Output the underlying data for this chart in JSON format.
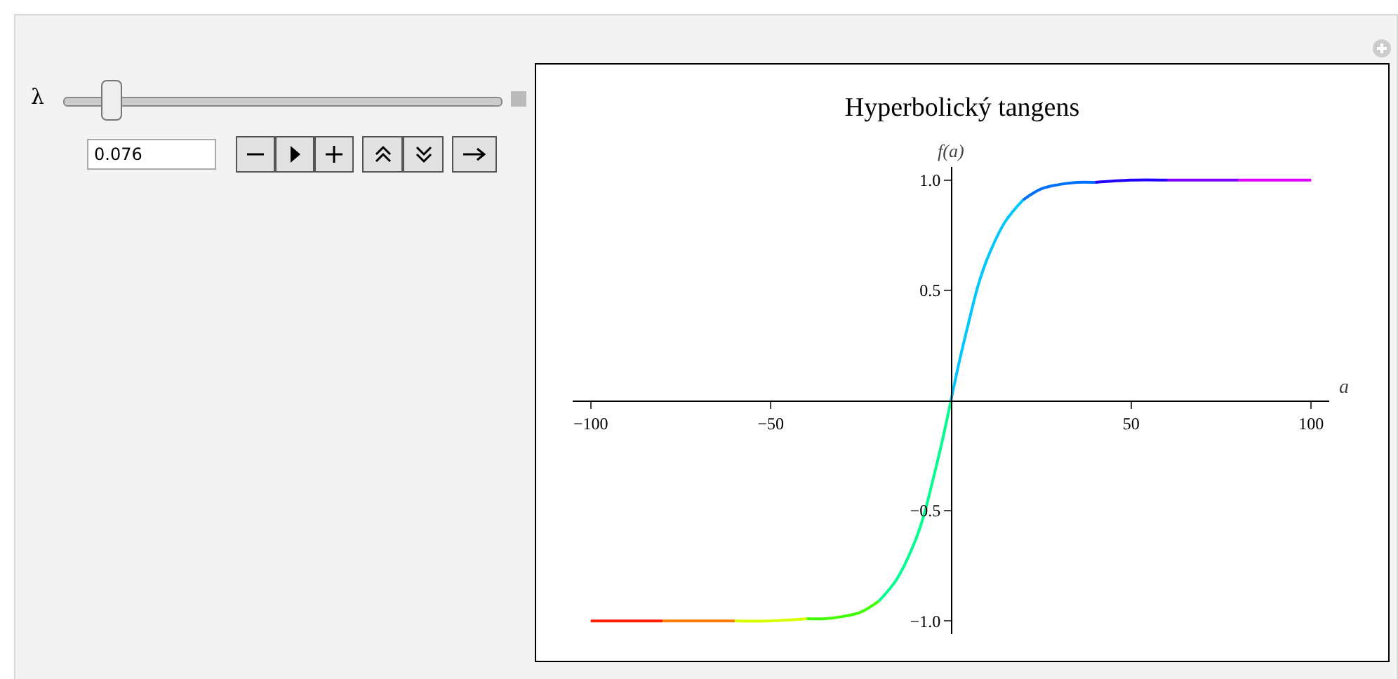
{
  "chart_data": {
    "type": "line",
    "title": "Hyperbolický tangens",
    "xlabel": "a",
    "ylabel": "f(a)",
    "annotations": [
      "λ",
      "0.076"
    ],
    "xlim": [
      -105,
      105
    ],
    "ylim": [
      -1.06,
      1.06
    ],
    "xticks": [
      {
        "value": -100,
        "label": "−100"
      },
      {
        "value": -50,
        "label": "−50"
      },
      50,
      100
    ],
    "yticks": [
      {
        "value": -1,
        "label": "−1.0"
      },
      {
        "value": -0.5,
        "label": "−0.5"
      },
      0.5,
      {
        "value": 1,
        "label": "1.0"
      }
    ],
    "grid": false,
    "series": [
      {
        "color": "#ff2000",
        "x": [
          -100,
          -90,
          -80
        ],
        "values": [
          -1,
          -1,
          -1
        ]
      },
      {
        "color": "#ff8000",
        "x": [
          -80,
          -70,
          -60
        ],
        "values": [
          -1,
          -1,
          -1
        ]
      },
      {
        "color": "#d8ff00",
        "x": [
          -60,
          -50,
          -40
        ],
        "values": [
          -1,
          -1,
          -0.99
        ]
      },
      {
        "color": "#40ff00",
        "x": [
          -40,
          -35,
          -30,
          -25,
          -20
        ],
        "values": [
          -0.99,
          -0.99,
          -0.98,
          -0.96,
          -0.91
        ]
      },
      {
        "color": "#00ff90",
        "x": [
          -20,
          -15,
          -10,
          -7.5,
          -5,
          -2.5,
          0
        ],
        "values": [
          -0.91,
          -0.81,
          -0.64,
          -0.52,
          -0.36,
          -0.19,
          0
        ]
      },
      {
        "color": "#00c8ff",
        "x": [
          0,
          2.5,
          5,
          7.5,
          10,
          15,
          20
        ],
        "values": [
          0,
          0.19,
          0.36,
          0.52,
          0.64,
          0.81,
          0.91
        ]
      },
      {
        "color": "#0070ff",
        "x": [
          20,
          25,
          30,
          35,
          40
        ],
        "values": [
          0.91,
          0.96,
          0.98,
          0.99,
          0.99
        ]
      },
      {
        "color": "#2000ff",
        "x": [
          40,
          50,
          60
        ],
        "values": [
          0.99,
          1,
          1
        ]
      },
      {
        "color": "#8000ff",
        "x": [
          60,
          70,
          80
        ],
        "values": [
          1,
          1,
          1
        ]
      },
      {
        "color": "#e000ff",
        "x": [
          80,
          90,
          100
        ],
        "values": [
          1,
          1,
          1
        ]
      }
    ]
  }
}
